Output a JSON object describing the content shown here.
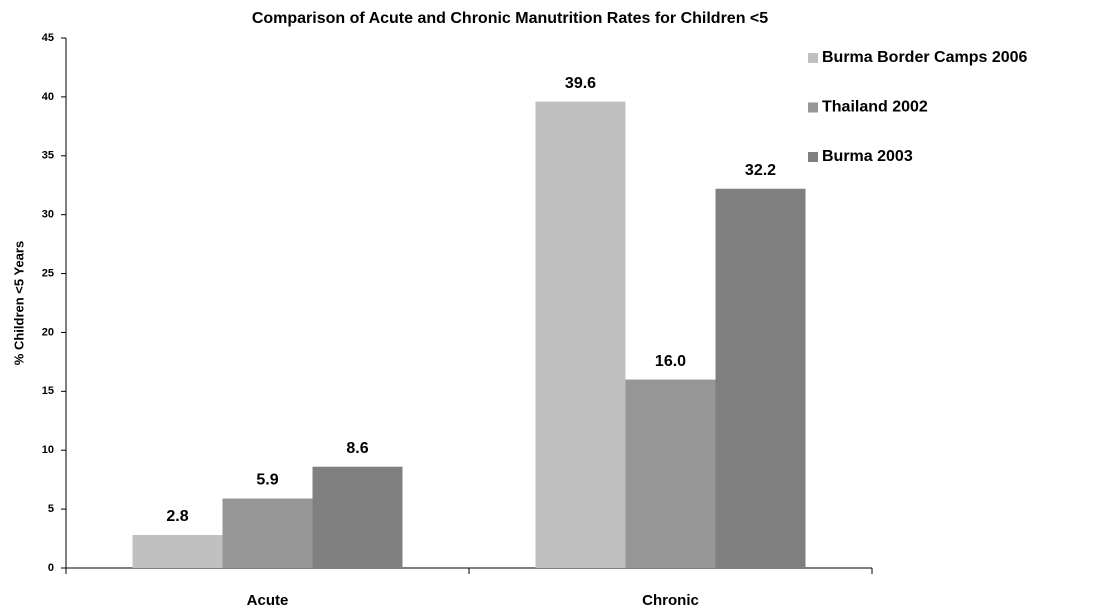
{
  "chart_data": {
    "type": "bar",
    "title": "Comparison of Acute and Chronic Manutrition Rates for Children <5",
    "y_label": "% Children <5 Years",
    "categories": [
      "Acute",
      "Chronic"
    ],
    "series": [
      {
        "name": "Burma Border Camps 2006",
        "color": "#c0c0c0",
        "values": [
          2.8,
          39.6
        ],
        "value_labels": [
          "2.8",
          "39.6"
        ]
      },
      {
        "name": "Thailand 2002",
        "color": "#969696",
        "values": [
          5.9,
          16
        ],
        "value_labels": [
          "5.9",
          "16.0"
        ]
      },
      {
        "name": "Burma 2003",
        "color": "#808080",
        "values": [
          8.6,
          32.2
        ],
        "value_labels": [
          "8.6",
          "32.2"
        ]
      }
    ],
    "ylim": [
      0,
      45
    ],
    "yticks": [
      0,
      5,
      10,
      15,
      20,
      25,
      30,
      35,
      40,
      45
    ],
    "grid": false,
    "legend": "right"
  }
}
